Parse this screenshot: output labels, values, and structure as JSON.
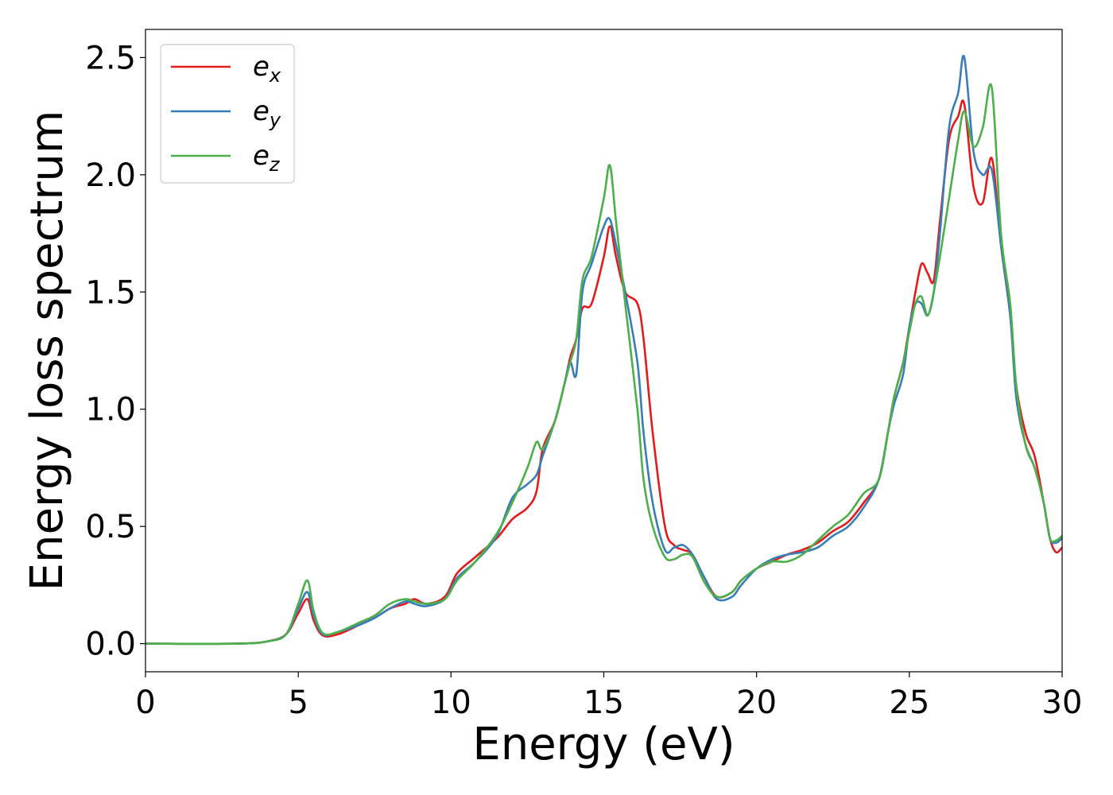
{
  "chart_data": {
    "type": "line",
    "title": "",
    "xlabel": "Energy (eV)",
    "ylabel": "Energy loss spectrum",
    "xlim": [
      0,
      30
    ],
    "ylim": [
      -0.12,
      2.62
    ],
    "xticks": [
      0,
      5,
      10,
      15,
      20,
      25,
      30
    ],
    "xtick_labels": [
      "0",
      "5",
      "10",
      "15",
      "20",
      "25",
      "30"
    ],
    "yticks": [
      0.0,
      0.5,
      1.0,
      1.5,
      2.0,
      2.5
    ],
    "ytick_labels": [
      "0.0",
      "0.5",
      "1.0",
      "1.5",
      "2.0",
      "2.5"
    ],
    "grid": false,
    "legend_position": "top-left",
    "series": [
      {
        "name": "e",
        "subscript": "x",
        "color": "#e41a1c",
        "points": [
          [
            0,
            0
          ],
          [
            3,
            0
          ],
          [
            4,
            0.01
          ],
          [
            4.6,
            0.04
          ],
          [
            5,
            0.13
          ],
          [
            5.3,
            0.19
          ],
          [
            5.5,
            0.1
          ],
          [
            5.8,
            0.035
          ],
          [
            6.3,
            0.04
          ],
          [
            7,
            0.08
          ],
          [
            7.5,
            0.11
          ],
          [
            8,
            0.15
          ],
          [
            8.5,
            0.17
          ],
          [
            8.8,
            0.19
          ],
          [
            9.2,
            0.17
          ],
          [
            9.8,
            0.2
          ],
          [
            10.2,
            0.3
          ],
          [
            10.8,
            0.37
          ],
          [
            11.5,
            0.45
          ],
          [
            12,
            0.53
          ],
          [
            12.5,
            0.58
          ],
          [
            12.8,
            0.65
          ],
          [
            13,
            0.83
          ],
          [
            13.4,
            0.95
          ],
          [
            13.7,
            1.1
          ],
          [
            13.9,
            1.22
          ],
          [
            14.1,
            1.3
          ],
          [
            14.3,
            1.43
          ],
          [
            14.6,
            1.45
          ],
          [
            15,
            1.65
          ],
          [
            15.2,
            1.78
          ],
          [
            15.4,
            1.65
          ],
          [
            15.7,
            1.5
          ],
          [
            16.1,
            1.45
          ],
          [
            16.3,
            1.3
          ],
          [
            16.6,
            0.9
          ],
          [
            17,
            0.5
          ],
          [
            17.3,
            0.42
          ],
          [
            17.6,
            0.4
          ],
          [
            17.9,
            0.38
          ],
          [
            18.3,
            0.28
          ],
          [
            18.7,
            0.2
          ],
          [
            19.2,
            0.22
          ],
          [
            19.5,
            0.27
          ],
          [
            20,
            0.32
          ],
          [
            20.5,
            0.35
          ],
          [
            21,
            0.38
          ],
          [
            21.5,
            0.4
          ],
          [
            22,
            0.43
          ],
          [
            22.5,
            0.48
          ],
          [
            23,
            0.52
          ],
          [
            23.5,
            0.6
          ],
          [
            24,
            0.7
          ],
          [
            24.3,
            0.9
          ],
          [
            24.5,
            1.05
          ],
          [
            24.8,
            1.2
          ],
          [
            25,
            1.35
          ],
          [
            25.2,
            1.5
          ],
          [
            25.4,
            1.62
          ],
          [
            25.6,
            1.58
          ],
          [
            25.8,
            1.55
          ],
          [
            26,
            1.8
          ],
          [
            26.3,
            2.15
          ],
          [
            26.6,
            2.25
          ],
          [
            26.8,
            2.3
          ],
          [
            27.1,
            1.95
          ],
          [
            27.4,
            1.88
          ],
          [
            27.7,
            2.07
          ],
          [
            28,
            1.7
          ],
          [
            28.3,
            1.4
          ],
          [
            28.5,
            1.1
          ],
          [
            28.8,
            0.9
          ],
          [
            29.1,
            0.8
          ],
          [
            29.4,
            0.6
          ],
          [
            29.6,
            0.45
          ],
          [
            29.8,
            0.39
          ],
          [
            30,
            0.41
          ]
        ]
      },
      {
        "name": "e",
        "subscript": "y",
        "color": "#377eb8",
        "points": [
          [
            0,
            0
          ],
          [
            3,
            0
          ],
          [
            4,
            0.01
          ],
          [
            4.6,
            0.04
          ],
          [
            5,
            0.15
          ],
          [
            5.3,
            0.22
          ],
          [
            5.5,
            0.12
          ],
          [
            5.8,
            0.04
          ],
          [
            6.3,
            0.05
          ],
          [
            7,
            0.08
          ],
          [
            7.5,
            0.11
          ],
          [
            8,
            0.15
          ],
          [
            8.5,
            0.18
          ],
          [
            8.8,
            0.17
          ],
          [
            9.2,
            0.16
          ],
          [
            9.8,
            0.19
          ],
          [
            10.2,
            0.28
          ],
          [
            10.8,
            0.35
          ],
          [
            11.5,
            0.46
          ],
          [
            12,
            0.62
          ],
          [
            12.5,
            0.68
          ],
          [
            12.8,
            0.72
          ],
          [
            13,
            0.8
          ],
          [
            13.4,
            0.95
          ],
          [
            13.7,
            1.1
          ],
          [
            13.9,
            1.2
          ],
          [
            14.1,
            1.15
          ],
          [
            14.3,
            1.5
          ],
          [
            14.6,
            1.62
          ],
          [
            15,
            1.78
          ],
          [
            15.2,
            1.81
          ],
          [
            15.4,
            1.7
          ],
          [
            15.7,
            1.5
          ],
          [
            16.1,
            1.2
          ],
          [
            16.3,
            0.9
          ],
          [
            16.6,
            0.6
          ],
          [
            17,
            0.4
          ],
          [
            17.3,
            0.41
          ],
          [
            17.6,
            0.42
          ],
          [
            17.9,
            0.38
          ],
          [
            18.3,
            0.28
          ],
          [
            18.7,
            0.19
          ],
          [
            19.2,
            0.2
          ],
          [
            19.5,
            0.25
          ],
          [
            20,
            0.32
          ],
          [
            20.5,
            0.36
          ],
          [
            21,
            0.38
          ],
          [
            21.5,
            0.39
          ],
          [
            22,
            0.41
          ],
          [
            22.5,
            0.46
          ],
          [
            23,
            0.5
          ],
          [
            23.5,
            0.58
          ],
          [
            24,
            0.7
          ],
          [
            24.3,
            0.9
          ],
          [
            24.5,
            1.02
          ],
          [
            24.8,
            1.15
          ],
          [
            25,
            1.35
          ],
          [
            25.2,
            1.45
          ],
          [
            25.4,
            1.45
          ],
          [
            25.6,
            1.4
          ],
          [
            25.8,
            1.5
          ],
          [
            26,
            1.75
          ],
          [
            26.3,
            2.2
          ],
          [
            26.6,
            2.35
          ],
          [
            26.8,
            2.5
          ],
          [
            27.1,
            2.1
          ],
          [
            27.4,
            2.0
          ],
          [
            27.7,
            2.02
          ],
          [
            28,
            1.7
          ],
          [
            28.3,
            1.4
          ],
          [
            28.5,
            1.05
          ],
          [
            28.8,
            0.85
          ],
          [
            29.1,
            0.75
          ],
          [
            29.4,
            0.6
          ],
          [
            29.6,
            0.45
          ],
          [
            29.8,
            0.43
          ],
          [
            30,
            0.45
          ]
        ]
      },
      {
        "name": "e",
        "subscript": "z",
        "color": "#4daf4a",
        "points": [
          [
            0,
            0
          ],
          [
            3,
            0
          ],
          [
            4,
            0.01
          ],
          [
            4.6,
            0.04
          ],
          [
            5,
            0.17
          ],
          [
            5.3,
            0.27
          ],
          [
            5.5,
            0.14
          ],
          [
            5.8,
            0.045
          ],
          [
            6.3,
            0.05
          ],
          [
            7,
            0.09
          ],
          [
            7.5,
            0.12
          ],
          [
            8,
            0.17
          ],
          [
            8.5,
            0.19
          ],
          [
            8.8,
            0.18
          ],
          [
            9.2,
            0.17
          ],
          [
            9.8,
            0.19
          ],
          [
            10.2,
            0.27
          ],
          [
            10.8,
            0.35
          ],
          [
            11.5,
            0.47
          ],
          [
            12,
            0.6
          ],
          [
            12.5,
            0.75
          ],
          [
            12.8,
            0.86
          ],
          [
            13,
            0.83
          ],
          [
            13.4,
            0.95
          ],
          [
            13.7,
            1.1
          ],
          [
            13.9,
            1.2
          ],
          [
            14.1,
            1.3
          ],
          [
            14.3,
            1.55
          ],
          [
            14.6,
            1.65
          ],
          [
            15,
            1.9
          ],
          [
            15.2,
            2.04
          ],
          [
            15.4,
            1.8
          ],
          [
            15.7,
            1.45
          ],
          [
            16.1,
            1.0
          ],
          [
            16.3,
            0.7
          ],
          [
            16.6,
            0.5
          ],
          [
            17,
            0.37
          ],
          [
            17.3,
            0.36
          ],
          [
            17.6,
            0.38
          ],
          [
            17.9,
            0.37
          ],
          [
            18.3,
            0.26
          ],
          [
            18.7,
            0.2
          ],
          [
            19.2,
            0.22
          ],
          [
            19.5,
            0.27
          ],
          [
            20,
            0.32
          ],
          [
            20.5,
            0.35
          ],
          [
            21,
            0.35
          ],
          [
            21.5,
            0.38
          ],
          [
            22,
            0.44
          ],
          [
            22.5,
            0.5
          ],
          [
            23,
            0.55
          ],
          [
            23.5,
            0.64
          ],
          [
            24,
            0.7
          ],
          [
            24.3,
            0.9
          ],
          [
            24.5,
            1.05
          ],
          [
            24.8,
            1.2
          ],
          [
            25,
            1.33
          ],
          [
            25.2,
            1.45
          ],
          [
            25.4,
            1.48
          ],
          [
            25.6,
            1.4
          ],
          [
            25.8,
            1.5
          ],
          [
            26,
            1.65
          ],
          [
            26.3,
            1.9
          ],
          [
            26.6,
            2.15
          ],
          [
            26.8,
            2.27
          ],
          [
            27.1,
            2.12
          ],
          [
            27.4,
            2.2
          ],
          [
            27.7,
            2.37
          ],
          [
            28,
            1.75
          ],
          [
            28.3,
            1.45
          ],
          [
            28.5,
            1.1
          ],
          [
            28.8,
            0.85
          ],
          [
            29.1,
            0.75
          ],
          [
            29.4,
            0.6
          ],
          [
            29.6,
            0.45
          ],
          [
            29.8,
            0.44
          ],
          [
            30,
            0.46
          ]
        ]
      }
    ]
  }
}
